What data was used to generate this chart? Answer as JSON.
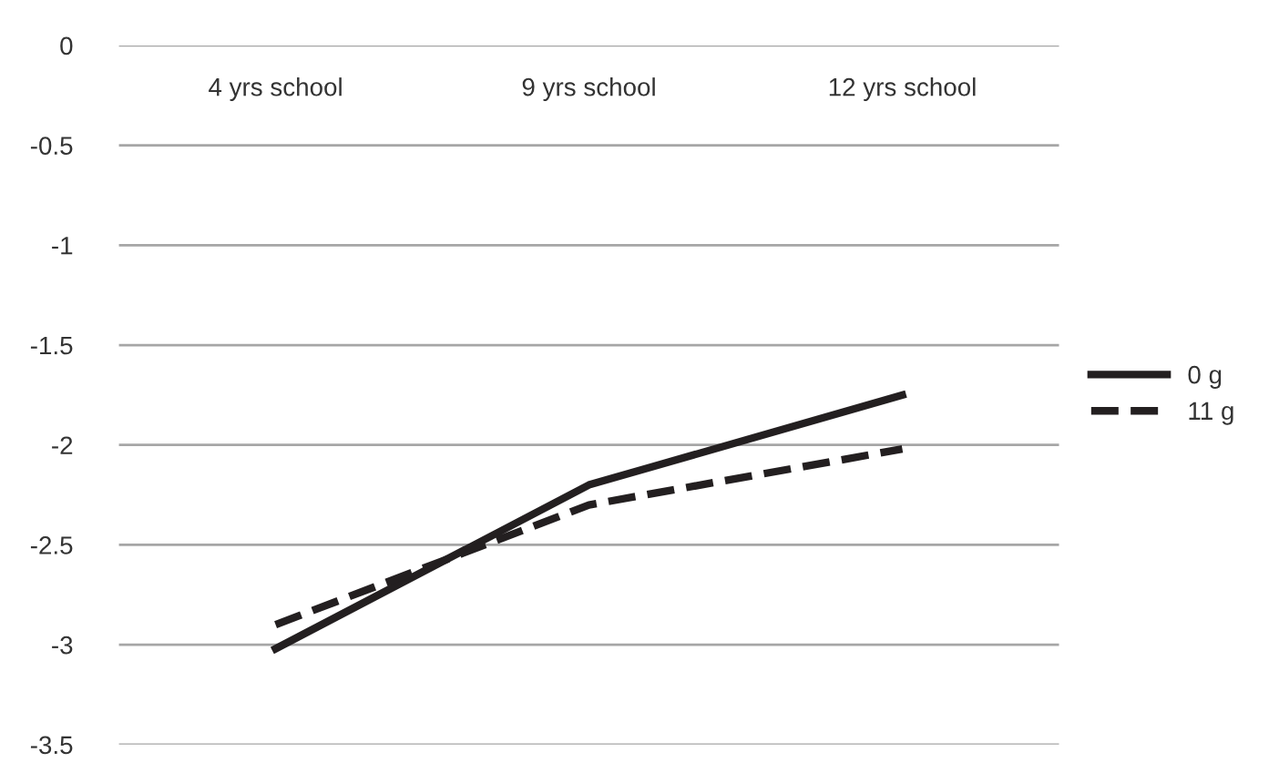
{
  "chart_data": {
    "type": "line",
    "categories": [
      "4 yrs school",
      "9 yrs school",
      "12 yrs school"
    ],
    "series": [
      {
        "name": "0 g",
        "color": "#231f20",
        "values": [
          -3.02,
          -2.2,
          -1.75
        ],
        "line_style": "solid"
      },
      {
        "name": "11 g",
        "color": "#231f20",
        "values": [
          -2.9,
          -2.3,
          -2.02
        ],
        "line_style": "dashed"
      }
    ],
    "ylim": [
      -3.5,
      0
    ],
    "yticks": [
      0,
      -0.5,
      -1,
      -1.5,
      -2,
      -2.5,
      -3,
      -3.5
    ],
    "grid": "y",
    "legend": "right",
    "marker": "none"
  }
}
